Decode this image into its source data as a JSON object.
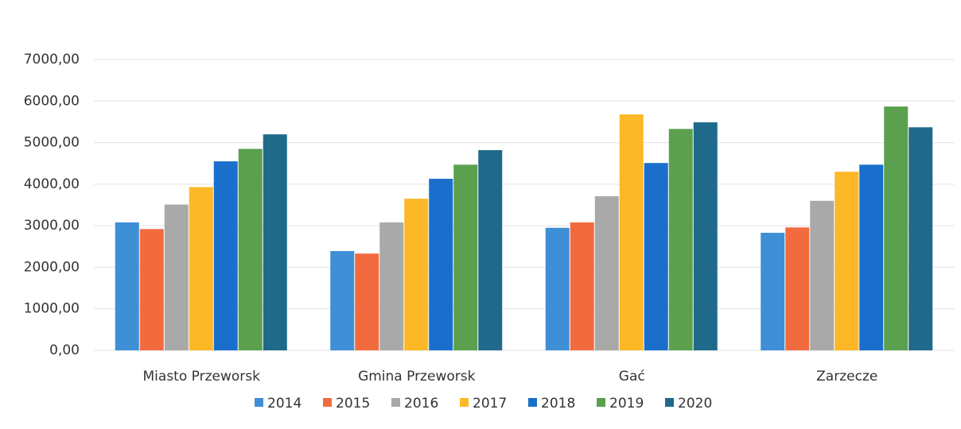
{
  "chart_data": {
    "type": "bar",
    "categories": [
      "Miasto Przeworsk",
      "Gmina Przeworsk",
      "Gać",
      "Zarzecze"
    ],
    "series": [
      {
        "name": "2014",
        "color": "#3e8fd6",
        "values": [
          3080,
          2390,
          2950,
          2830
        ]
      },
      {
        "name": "2015",
        "color": "#f26b3f",
        "values": [
          2920,
          2330,
          3080,
          2960
        ]
      },
      {
        "name": "2016",
        "color": "#a9a9a9",
        "values": [
          3510,
          3080,
          3710,
          3600
        ]
      },
      {
        "name": "2017",
        "color": "#fdb827",
        "values": [
          3930,
          3650,
          5680,
          4300
        ]
      },
      {
        "name": "2018",
        "color": "#1a6fcc",
        "values": [
          4550,
          4130,
          4510,
          4470
        ]
      },
      {
        "name": "2019",
        "color": "#5aa04f",
        "values": [
          4850,
          4470,
          5330,
          5870
        ]
      },
      {
        "name": "2020",
        "color": "#1f6a8a",
        "values": [
          5200,
          4820,
          5490,
          5370
        ]
      }
    ],
    "ylim": [
      0,
      7000
    ],
    "yticks": [
      {
        "value": 0,
        "label": "0,00"
      },
      {
        "value": 1000,
        "label": "1000,00"
      },
      {
        "value": 2000,
        "label": "2000,00"
      },
      {
        "value": 3000,
        "label": "3000,00"
      },
      {
        "value": 4000,
        "label": "4000,00"
      },
      {
        "value": 5000,
        "label": "5000,00"
      },
      {
        "value": 6000,
        "label": "6000,00"
      },
      {
        "value": 7000,
        "label": "7000,00"
      }
    ],
    "grid": true,
    "legend": "bottom"
  }
}
